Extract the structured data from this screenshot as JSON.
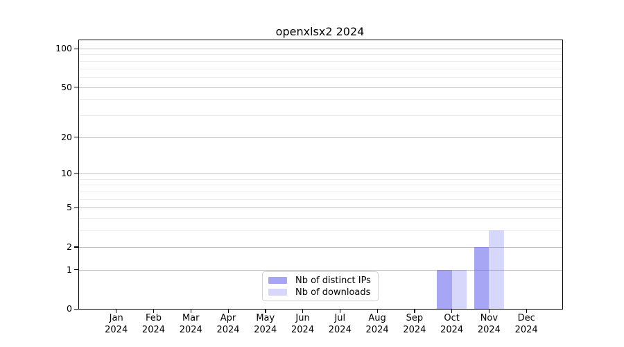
{
  "figure": {
    "background": "#ffffff"
  },
  "chart_data": {
    "type": "bar",
    "title": "openxlsx2 2024",
    "categories": [
      "Jan",
      "Feb",
      "Mar",
      "Apr",
      "May",
      "Jun",
      "Jul",
      "Aug",
      "Sep",
      "Oct",
      "Nov",
      "Dec"
    ],
    "x_year_label": "2024",
    "series": [
      {
        "name": "Nb of distinct IPs",
        "color": "rgba(102,102,238,0.58)",
        "values": [
          0,
          0,
          0,
          0,
          0,
          0,
          0,
          0,
          0,
          1,
          2,
          0
        ]
      },
      {
        "name": "Nb of downloads",
        "color": "rgba(102,102,238,0.26)",
        "values": [
          0,
          0,
          0,
          0,
          0,
          0,
          0,
          0,
          0,
          1,
          3,
          0
        ]
      }
    ],
    "yscale": "log1p",
    "ylim": [
      0,
      115
    ],
    "yticks_major": [
      0,
      1,
      2,
      5,
      10,
      20,
      50,
      100
    ],
    "yticks_minor": [
      3,
      4,
      6,
      7,
      8,
      9,
      30,
      40,
      60,
      70,
      80,
      90
    ],
    "grid": true,
    "legend_position": "lower center"
  },
  "colors": {
    "axis": "#000000",
    "grid_major": "#c2c2c2",
    "grid_minor": "#ebebeb",
    "legend_border": "#d2d2d2",
    "text": "#000000"
  }
}
